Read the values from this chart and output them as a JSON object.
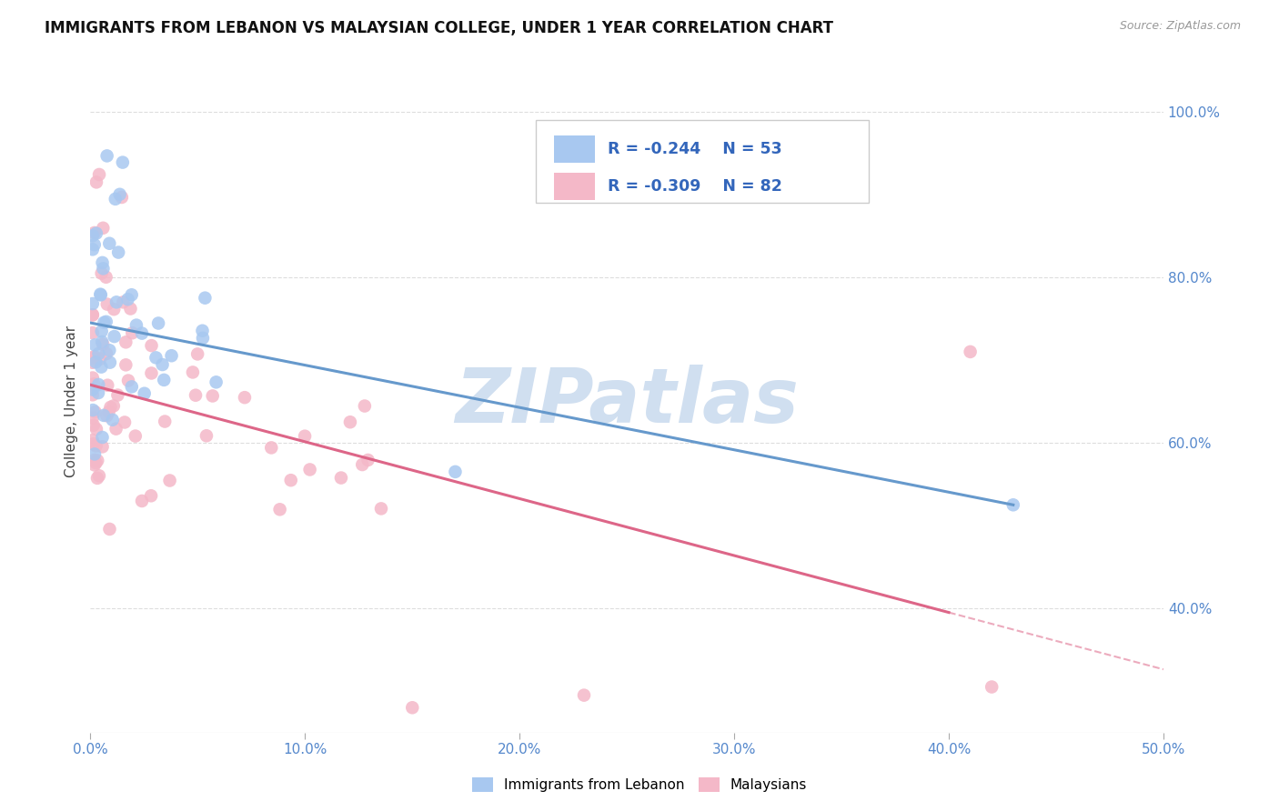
{
  "title": "IMMIGRANTS FROM LEBANON VS MALAYSIAN COLLEGE, UNDER 1 YEAR CORRELATION CHART",
  "source": "Source: ZipAtlas.com",
  "ylabel": "College, Under 1 year",
  "xlim": [
    0.0,
    0.5
  ],
  "ylim": [
    0.25,
    1.05
  ],
  "x_tick_labels": [
    "0.0%",
    "10.0%",
    "20.0%",
    "30.0%",
    "40.0%",
    "50.0%"
  ],
  "x_ticks": [
    0.0,
    0.1,
    0.2,
    0.3,
    0.4,
    0.5
  ],
  "y_tick_labels": [
    "40.0%",
    "60.0%",
    "80.0%",
    "100.0%"
  ],
  "y_ticks": [
    0.4,
    0.6,
    0.8,
    1.0
  ],
  "color_lebanon": "#a8c8f0",
  "color_malaysia": "#f4b8c8",
  "line_color_lebanon": "#6699cc",
  "line_color_malaysia": "#dd6688",
  "watermark": "ZIPatlas",
  "watermark_color": "#d0dff0",
  "background_color": "#ffffff",
  "leb_line_x0": 0.0,
  "leb_line_y0": 0.745,
  "leb_line_x1": 0.43,
  "leb_line_y1": 0.525,
  "mal_line_x0": 0.0,
  "mal_line_y0": 0.67,
  "mal_line_x1": 0.4,
  "mal_line_y1": 0.395,
  "mal_line_dash_x0": 0.4,
  "mal_line_dash_x1": 0.5
}
